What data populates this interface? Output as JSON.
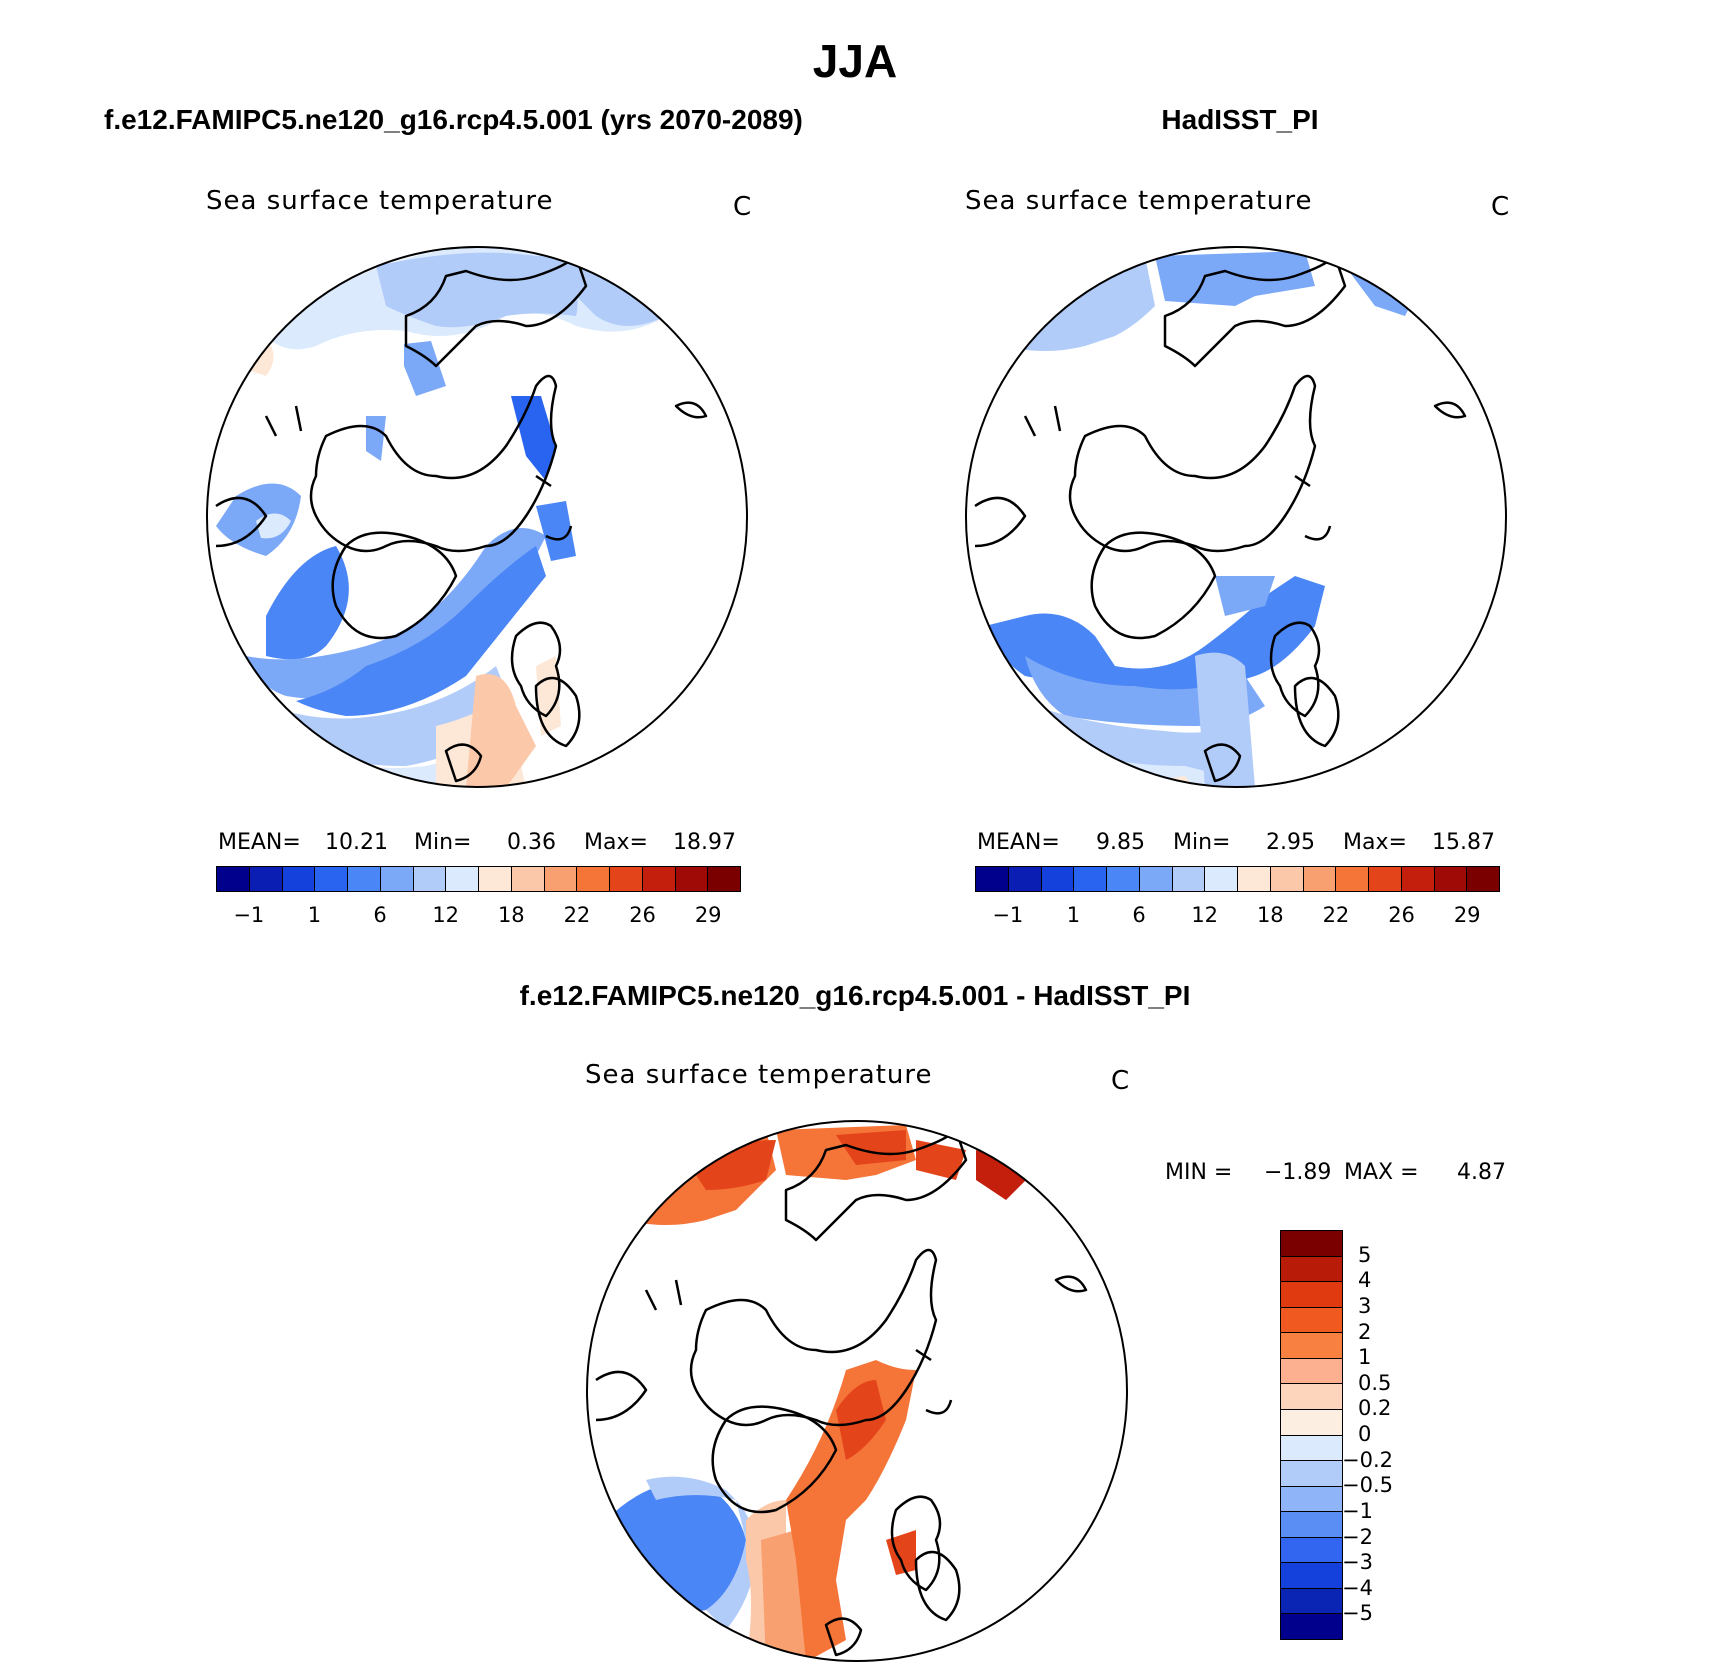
{
  "figure": {
    "title": "JJA",
    "panel_left": {
      "title": "f.e12.FAMIPC5.ne120_g16.rcp4.5.001 (yrs 2070-2089)",
      "variable": "Sea surface temperature",
      "units": "C",
      "mean_label": "MEAN=",
      "mean_value": "10.21",
      "min_label": "Min=",
      "min_value": "0.36",
      "max_label": "Max=",
      "max_value": "18.97"
    },
    "panel_right": {
      "title": "HadISST_PI",
      "variable": "Sea surface temperature",
      "units": "C",
      "mean_label": "MEAN=",
      "mean_value": "9.85",
      "min_label": "Min=",
      "min_value": "2.95",
      "max_label": "Max=",
      "max_value": "15.87"
    },
    "panel_diff": {
      "title": "f.e12.FAMIPC5.ne120_g16.rcp4.5.001 - HadISST_PI",
      "variable": "Sea surface temperature",
      "units": "C",
      "min_label": "MIN =",
      "min_value": "−1.89",
      "max_label": "MAX =",
      "max_value": "4.87"
    }
  },
  "colorbar_abs": {
    "colors": [
      "#00008c",
      "#0a1eb4",
      "#1440dc",
      "#2864f0",
      "#4a86f5",
      "#7ca8f8",
      "#b2ccfa",
      "#dceafd",
      "#fde8d8",
      "#fcc8aa",
      "#f9a070",
      "#f57438",
      "#e4441a",
      "#c41e0c",
      "#a00a06",
      "#7a0000"
    ],
    "ticks": [
      "−1",
      "1",
      "6",
      "12",
      "18",
      "22",
      "26",
      "29"
    ]
  },
  "colorbar_diff": {
    "colors": [
      "#7a0000",
      "#b81c08",
      "#e03a10",
      "#f05a20",
      "#f88040",
      "#fcb090",
      "#fdd4bc",
      "#fdeee2",
      "#dceafd",
      "#b2ccfa",
      "#90b4f8",
      "#5a8ef5",
      "#3266f0",
      "#1440dc",
      "#0a24b4",
      "#00008c"
    ],
    "ticks": [
      "5",
      "4",
      "3",
      "2",
      "1",
      "0.5",
      "0.2",
      "0",
      "−0.2",
      "−0.5",
      "−1",
      "−2",
      "−3",
      "−4",
      "−5"
    ]
  },
  "chart_data": [
    {
      "type": "map",
      "title": "f.e12.FAMIPC5.ne120_g16.rcp4.5.001 (yrs 2070-2089)",
      "variable": "Sea surface temperature",
      "units": "C",
      "projection": "north polar stereographic",
      "mean": 10.21,
      "min": 0.36,
      "max": 18.97,
      "levels": [
        -1,
        1,
        6,
        12,
        18,
        22,
        26,
        29
      ]
    },
    {
      "type": "map",
      "title": "HadISST_PI",
      "variable": "Sea surface temperature",
      "units": "C",
      "projection": "north polar stereographic",
      "mean": 9.85,
      "min": 2.95,
      "max": 15.87,
      "levels": [
        -1,
        1,
        6,
        12,
        18,
        22,
        26,
        29
      ]
    },
    {
      "type": "map",
      "title": "f.e12.FAMIPC5.ne120_g16.rcp4.5.001 - HadISST_PI",
      "variable": "Sea surface temperature",
      "units": "C",
      "projection": "north polar stereographic",
      "min": -1.89,
      "max": 4.87,
      "levels": [
        5,
        4,
        3,
        2,
        1,
        0.5,
        0.2,
        0,
        -0.2,
        -0.5,
        -1,
        -2,
        -3,
        -4,
        -5
      ]
    }
  ]
}
